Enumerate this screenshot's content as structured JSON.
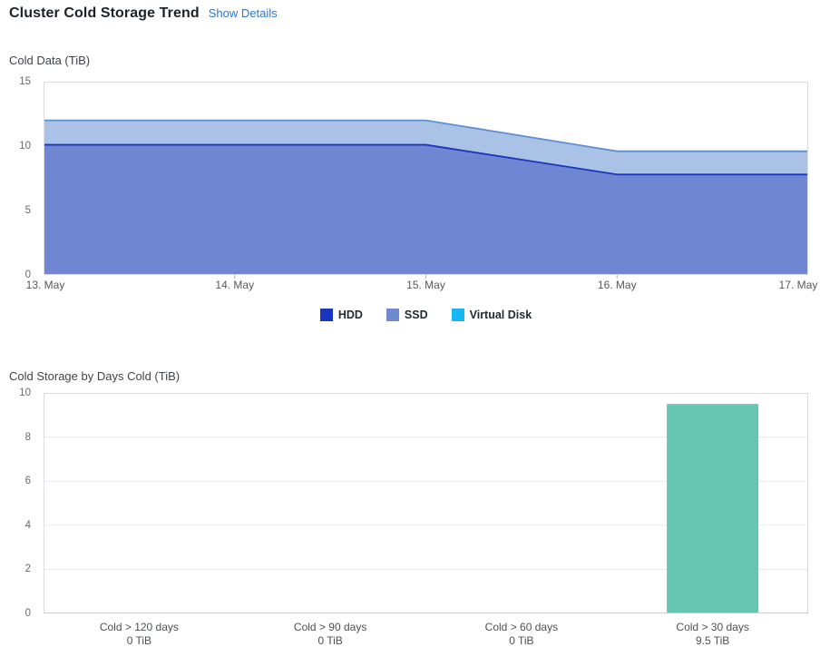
{
  "header": {
    "title": "Cluster Cold Storage Trend",
    "details_link": "Show Details"
  },
  "chart_data": [
    {
      "id": "cold-data-trend",
      "type": "area",
      "stacked": true,
      "title": "Cold Data (TiB)",
      "x": [
        "13. May",
        "14. May",
        "15. May",
        "16. May",
        "17. May"
      ],
      "series": [
        {
          "name": "HDD",
          "values": [
            10.1,
            10.1,
            10.1,
            7.8,
            7.8
          ],
          "line_color": "#1a35bd",
          "fill_color": "#6f86d2"
        },
        {
          "name": "SSD",
          "values": [
            1.9,
            1.9,
            1.9,
            1.8,
            1.8
          ],
          "line_color": "#5d90d3",
          "fill_color": "#a9c2e6"
        },
        {
          "name": "Virtual Disk",
          "values": [
            0,
            0,
            0,
            0,
            0
          ],
          "line_color": "#18b7f4",
          "fill_color": "#18b7f4"
        }
      ],
      "totals": [
        12.0,
        12.0,
        12.0,
        9.6,
        9.6
      ],
      "ylim": [
        0,
        15
      ],
      "yticks": [
        0,
        5,
        10,
        15
      ],
      "grid": false,
      "legend_position": "bottom",
      "legend": [
        {
          "label": "HDD",
          "color": "#1a35bd"
        },
        {
          "label": "SSD",
          "color": "#6d8bce"
        },
        {
          "label": "Virtual Disk",
          "color": "#18b7f4"
        }
      ]
    },
    {
      "id": "cold-storage-by-days",
      "type": "bar",
      "title": "Cold Storage by Days Cold (TiB)",
      "categories": [
        "Cold > 120 days",
        "Cold > 90 days",
        "Cold > 60 days",
        "Cold > 30 days"
      ],
      "values": [
        0,
        0,
        0,
        9.5
      ],
      "value_labels": [
        "0 TiB",
        "0 TiB",
        "0 TiB",
        "9.5 TiB"
      ],
      "bar_color": "#67c6b1",
      "ylim": [
        0,
        10
      ],
      "yticks": [
        0,
        2,
        4,
        6,
        8,
        10
      ],
      "grid": true,
      "legend_position": "none"
    }
  ],
  "style": {
    "border_color": "#d9dce0",
    "grid_color": "#e8eaed",
    "tick_color": "#b6b9be",
    "baseline_color": "#c9ced6",
    "link_color": "#2e76cc"
  }
}
